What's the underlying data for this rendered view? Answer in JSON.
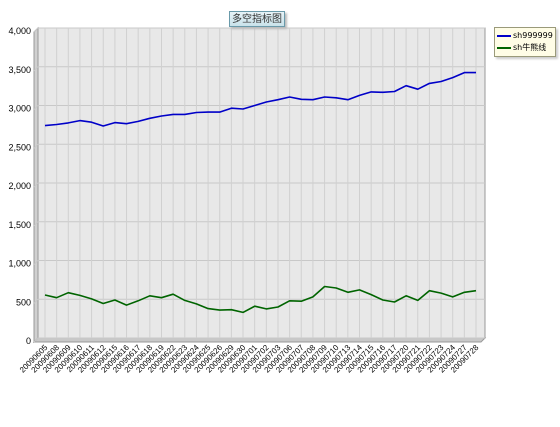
{
  "chart_data": {
    "type": "line",
    "title": "多空指标图",
    "x": [
      "20090605",
      "20090608",
      "20090609",
      "20090610",
      "20090611",
      "20090612",
      "20090615",
      "20090616",
      "20090617",
      "20090618",
      "20090619",
      "20090622",
      "20090623",
      "20090624",
      "20090625",
      "20090626",
      "20090629",
      "20090630",
      "20090701",
      "20090702",
      "20090703",
      "20090706",
      "20090707",
      "20090708",
      "20090709",
      "20090710",
      "20090713",
      "20090714",
      "20090715",
      "20090716",
      "20090717",
      "20090720",
      "20090721",
      "20090722",
      "20090723",
      "20090724",
      "20090727",
      "20090728"
    ],
    "series": [
      {
        "name": "sh999999",
        "color": "#0000c8",
        "values": [
          2740,
          2755,
          2775,
          2805,
          2785,
          2735,
          2780,
          2765,
          2795,
          2835,
          2865,
          2885,
          2885,
          2910,
          2915,
          2915,
          2965,
          2955,
          3000,
          3045,
          3075,
          3110,
          3080,
          3075,
          3110,
          3100,
          3075,
          3130,
          3175,
          3170,
          3180,
          3255,
          3210,
          3285,
          3310,
          3360,
          3425,
          3425
        ]
      },
      {
        "name": "sh牛熊线",
        "color": "#006400",
        "values": [
          555,
          520,
          585,
          550,
          505,
          445,
          490,
          425,
          480,
          545,
          520,
          565,
          485,
          440,
          380,
          360,
          365,
          330,
          410,
          375,
          400,
          480,
          475,
          530,
          665,
          645,
          590,
          620,
          560,
          490,
          465,
          545,
          485,
          610,
          580,
          530,
          590,
          610
        ]
      }
    ],
    "ylim": [
      0,
      4000
    ],
    "yticks": [
      "0",
      "500",
      "1,000",
      "1,500",
      "2,000",
      "2,500",
      "3,000",
      "3,500",
      "4,000"
    ],
    "grid": true,
    "legend_position": "top-right"
  }
}
